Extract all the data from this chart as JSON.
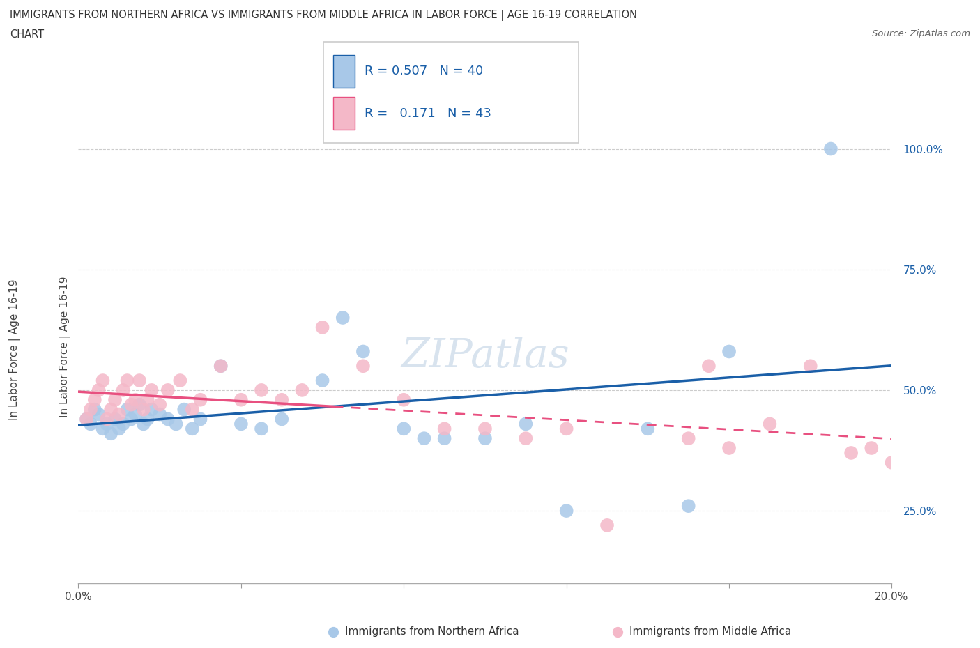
{
  "title_line1": "IMMIGRANTS FROM NORTHERN AFRICA VS IMMIGRANTS FROM MIDDLE AFRICA IN LABOR FORCE | AGE 16-19 CORRELATION",
  "title_line2": "CHART",
  "source_text": "Source: ZipAtlas.com",
  "ylabel": "In Labor Force | Age 16-19",
  "xlabel_blue": "Immigrants from Northern Africa",
  "xlabel_pink": "Immigrants from Middle Africa",
  "r_blue": 0.507,
  "n_blue": 40,
  "r_pink": 0.171,
  "n_pink": 43,
  "xlim": [
    0.0,
    0.2
  ],
  "ylim": [
    0.1,
    1.08
  ],
  "xtick_positions": [
    0.0,
    0.04,
    0.08,
    0.12,
    0.16,
    0.2
  ],
  "xtick_labels": [
    "0.0%",
    "",
    "",
    "",
    "",
    "20.0%"
  ],
  "ytick_positions": [
    0.25,
    0.5,
    0.75,
    1.0
  ],
  "ytick_labels": [
    "25.0%",
    "50.0%",
    "75.0%",
    "100.0%"
  ],
  "blue_scatter_color": "#a8c8e8",
  "pink_scatter_color": "#f4b8c8",
  "blue_line_color": "#1a5fa8",
  "pink_line_color": "#e85080",
  "watermark_color": "#c8d8e8",
  "blue_x": [
    0.002,
    0.003,
    0.004,
    0.005,
    0.006,
    0.007,
    0.008,
    0.009,
    0.01,
    0.011,
    0.012,
    0.013,
    0.014,
    0.015,
    0.016,
    0.017,
    0.018,
    0.02,
    0.022,
    0.024,
    0.026,
    0.028,
    0.03,
    0.035,
    0.04,
    0.045,
    0.05,
    0.06,
    0.065,
    0.07,
    0.08,
    0.085,
    0.09,
    0.1,
    0.11,
    0.12,
    0.14,
    0.15,
    0.16,
    0.185
  ],
  "blue_y": [
    0.44,
    0.43,
    0.46,
    0.45,
    0.42,
    0.43,
    0.41,
    0.44,
    0.42,
    0.43,
    0.46,
    0.44,
    0.45,
    0.47,
    0.43,
    0.44,
    0.46,
    0.45,
    0.44,
    0.43,
    0.46,
    0.42,
    0.44,
    0.55,
    0.43,
    0.42,
    0.44,
    0.52,
    0.65,
    0.58,
    0.42,
    0.4,
    0.4,
    0.4,
    0.43,
    0.25,
    0.42,
    0.26,
    0.58,
    1.0
  ],
  "pink_x": [
    0.002,
    0.003,
    0.004,
    0.005,
    0.006,
    0.007,
    0.008,
    0.009,
    0.01,
    0.011,
    0.012,
    0.013,
    0.014,
    0.015,
    0.016,
    0.017,
    0.018,
    0.02,
    0.022,
    0.025,
    0.028,
    0.03,
    0.035,
    0.04,
    0.045,
    0.05,
    0.055,
    0.06,
    0.07,
    0.08,
    0.09,
    0.1,
    0.11,
    0.12,
    0.13,
    0.15,
    0.155,
    0.16,
    0.17,
    0.18,
    0.19,
    0.195,
    0.2
  ],
  "pink_y": [
    0.44,
    0.46,
    0.48,
    0.5,
    0.52,
    0.44,
    0.46,
    0.48,
    0.45,
    0.5,
    0.52,
    0.47,
    0.48,
    0.52,
    0.46,
    0.48,
    0.5,
    0.47,
    0.5,
    0.52,
    0.46,
    0.48,
    0.55,
    0.48,
    0.5,
    0.48,
    0.5,
    0.63,
    0.55,
    0.48,
    0.42,
    0.42,
    0.4,
    0.42,
    0.22,
    0.4,
    0.55,
    0.38,
    0.43,
    0.55,
    0.37,
    0.38,
    0.35
  ]
}
